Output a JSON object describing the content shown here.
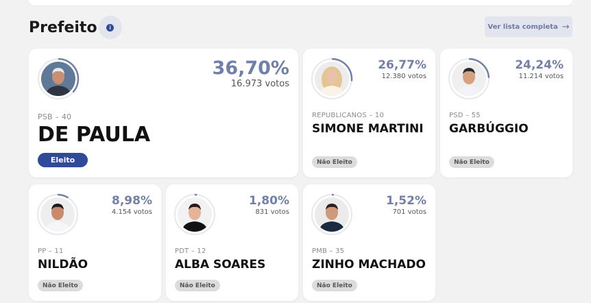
{
  "section": {
    "title": "Prefeito",
    "info_icon": "info-icon",
    "list_button_label": "Ver lista completa",
    "list_button_icon": "arrow-right-icon"
  },
  "colors": {
    "accent": "#2f4a9a",
    "percent": "#7180a8",
    "ring": "#7180a8",
    "ring_track": "#e8e8ec"
  },
  "candidates": [
    {
      "party": "PSB – 40",
      "name": "DE PAULA",
      "percent": "36,70%",
      "votes": "16.973 votos",
      "status": "Eleito",
      "share": 0.367
    },
    {
      "party": "REPUBLICANOS – 10",
      "name": "SIMONE MARTINI",
      "percent": "26,77%",
      "votes": "12.380 votos",
      "status": "Não Eleito",
      "share": 0.2677
    },
    {
      "party": "PSD – 55",
      "name": "GARBÚGGIO",
      "percent": "24,24%",
      "votes": "11.214 votos",
      "status": "Não Eleito",
      "share": 0.2424
    },
    {
      "party": "PP – 11",
      "name": "NILDÃO",
      "percent": "8,98%",
      "votes": "4.154 votos",
      "status": "Não Eleito",
      "share": 0.0898
    },
    {
      "party": "PDT – 12",
      "name": "ALBA SOARES",
      "percent": "1,80%",
      "votes": "831 votos",
      "status": "Não Eleito",
      "share": 0.018
    },
    {
      "party": "PMB – 35",
      "name": "ZINHO MACHADO",
      "percent": "1,52%",
      "votes": "701 votos",
      "status": "Não Eleito",
      "share": 0.0152
    }
  ]
}
